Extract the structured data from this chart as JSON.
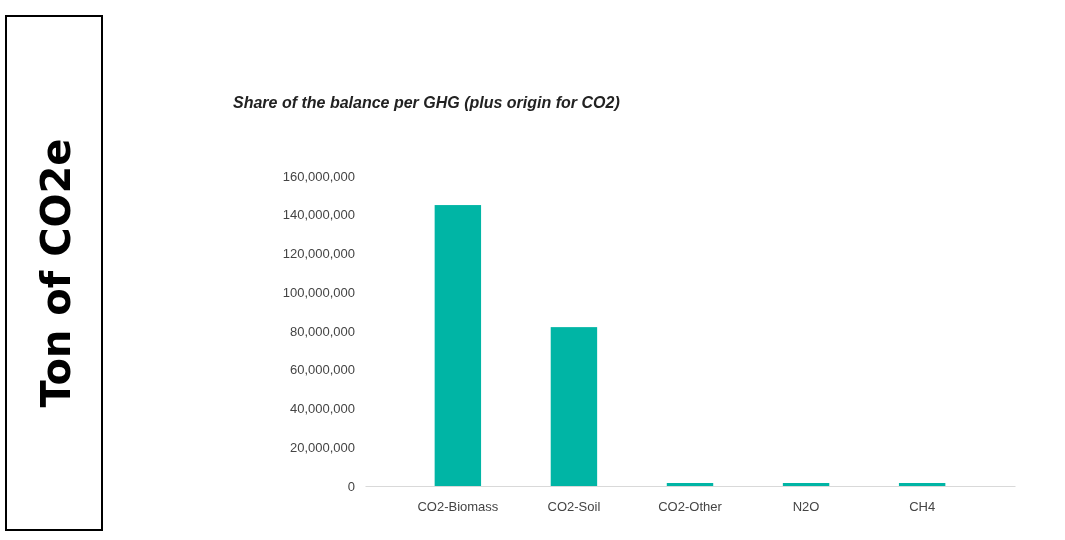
{
  "chart_data": {
    "type": "bar",
    "title": "Share of the balance per GHG (plus origin for CO2)",
    "annotations": [
      "Ton of CO2e"
    ],
    "categories": [
      "CO2-Biomass",
      "CO2-Soil",
      "CO2-Other",
      "N2O",
      "CH4"
    ],
    "values": [
      145000000,
      82000000,
      0,
      0,
      0
    ],
    "color": "#00b5a5",
    "ylim": [
      0,
      160000000
    ],
    "yticks": [
      0,
      {
        "value": 20000000,
        "label": "20,000,000"
      },
      {
        "value": 40000000,
        "label": "40,000,000"
      },
      {
        "value": 60000000,
        "label": "60,000,000"
      },
      {
        "value": 80000000,
        "label": "80,000,000"
      },
      {
        "value": 100000000,
        "label": "100,000,000"
      },
      {
        "value": 120000000,
        "label": "120,000,000"
      },
      {
        "value": 140000000,
        "label": "140,000,000"
      },
      {
        "value": 160000000,
        "label": "160,000,000"
      }
    ],
    "grid": false
  }
}
